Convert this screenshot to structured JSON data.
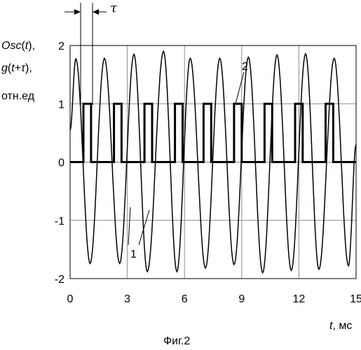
{
  "chart_data": {
    "type": "line",
    "title": "",
    "ylabel": {
      "line1_main": "Osc",
      "line1_arg": "t",
      "line2_main": "g",
      "line2_arg_a": "t",
      "line2_arg_b": "τ",
      "line3": "отн.ед"
    },
    "xlabel": {
      "var": "t",
      "unit": "мс"
    },
    "caption": "Фиг.2",
    "tau_label": "τ",
    "xlim": [
      0,
      15
    ],
    "ylim": [
      -2,
      2
    ],
    "x_ticks": [
      0,
      3,
      6,
      9,
      12,
      15
    ],
    "y_ticks": [
      2,
      1,
      0,
      -1,
      -2
    ],
    "grid": true,
    "series": [
      {
        "label": "1",
        "waveform": "sine",
        "x_start": 0,
        "y_start": 0.55,
        "peaks": [
          [
            0.3,
            1.77
          ],
          [
            1.05,
            -1.74
          ],
          [
            1.8,
            1.78
          ],
          [
            2.6,
            -1.74
          ],
          [
            3.35,
            1.85
          ],
          [
            4.05,
            -1.88
          ],
          [
            4.9,
            1.9
          ],
          [
            5.6,
            -1.88
          ],
          [
            6.3,
            1.78
          ],
          [
            7.1,
            -1.82
          ],
          [
            7.85,
            1.78
          ],
          [
            8.6,
            -1.76
          ],
          [
            9.35,
            1.8
          ],
          [
            10.1,
            -1.9
          ],
          [
            10.85,
            1.84
          ],
          [
            11.6,
            -1.86
          ],
          [
            12.35,
            1.86
          ],
          [
            13.05,
            -1.84
          ],
          [
            13.85,
            1.78
          ],
          [
            14.6,
            -1.78
          ],
          [
            15.0,
            0.3
          ]
        ]
      },
      {
        "label": "2",
        "waveform": "pulse",
        "level_high": 1,
        "level_low": 0,
        "pulses": [
          [
            0.7,
            1.1
          ],
          [
            2.3,
            2.7
          ],
          [
            3.9,
            4.3
          ],
          [
            5.5,
            5.9
          ],
          [
            7.0,
            7.4
          ],
          [
            8.6,
            9.0
          ],
          [
            10.2,
            10.6
          ],
          [
            11.8,
            12.2
          ],
          [
            13.4,
            13.8
          ]
        ]
      }
    ]
  }
}
